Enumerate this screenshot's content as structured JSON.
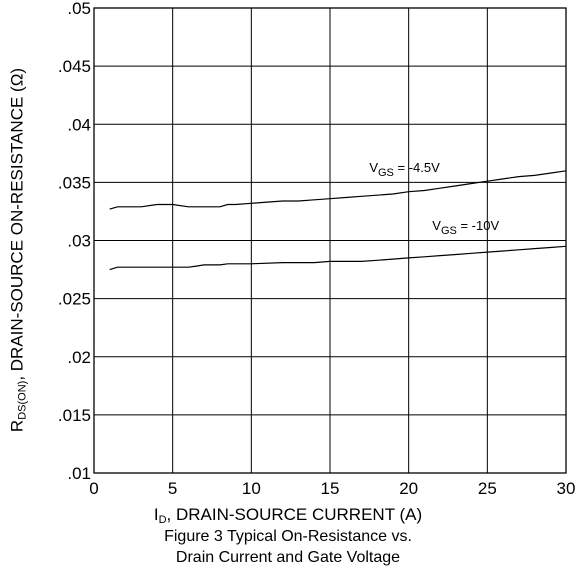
{
  "chart_data": {
    "type": "line",
    "xlabel_main": "I",
    "xlabel_sub": "D",
    "xlabel_rest": ", DRAIN-SOURCE CURRENT (A)",
    "ylabel_main": "R",
    "ylabel_sub": "DS(ON)",
    "ylabel_rest": ", DRAIN-SOURCE ON-RESISTANCE (Ω)",
    "xlim": [
      0,
      30
    ],
    "ylim": [
      0.01,
      0.05
    ],
    "x_ticks": [
      0,
      5,
      10,
      15,
      20,
      25,
      30
    ],
    "x_tick_labels": [
      "0",
      "5",
      "10",
      "15",
      "20",
      "25",
      "30"
    ],
    "y_ticks": [
      0.01,
      0.015,
      0.02,
      0.025,
      0.03,
      0.035,
      0.04,
      0.045,
      0.05
    ],
    "y_tick_labels": [
      ".01",
      ".015",
      ".02",
      ".025",
      ".03",
      ".035",
      ".04",
      ".045",
      ".05"
    ],
    "grid": true,
    "series": [
      {
        "name_main": "V",
        "name_sub": "GS",
        "name_rest": " = -4.5V",
        "x": [
          1,
          1.5,
          3,
          4,
          5,
          6,
          7,
          8,
          8.5,
          9,
          10,
          11,
          12,
          13,
          14,
          15,
          16,
          17,
          18,
          19,
          20,
          21,
          22,
          23,
          24,
          25,
          26,
          27,
          28,
          29,
          30
        ],
        "values": [
          0.0327,
          0.0329,
          0.0329,
          0.0331,
          0.0331,
          0.0329,
          0.0329,
          0.0329,
          0.0331,
          0.0331,
          0.0332,
          0.0333,
          0.0334,
          0.0334,
          0.0335,
          0.0336,
          0.0337,
          0.0338,
          0.0339,
          0.034,
          0.0342,
          0.0343,
          0.0345,
          0.0347,
          0.0349,
          0.0351,
          0.0353,
          0.0355,
          0.0356,
          0.0358,
          0.036
        ]
      },
      {
        "name_main": "V",
        "name_sub": "GS",
        "name_rest": " = -10V",
        "x": [
          1,
          1.5,
          3,
          4,
          5,
          6,
          6.5,
          7,
          8,
          8.5,
          10,
          12,
          14,
          15,
          17,
          18,
          19,
          20,
          21,
          22,
          23,
          24,
          25,
          26,
          27,
          28,
          29,
          30
        ],
        "values": [
          0.0275,
          0.0277,
          0.0277,
          0.0277,
          0.0277,
          0.0277,
          0.0278,
          0.0279,
          0.0279,
          0.028,
          0.028,
          0.0281,
          0.0281,
          0.0282,
          0.0282,
          0.0283,
          0.0284,
          0.0285,
          0.0286,
          0.0287,
          0.0288,
          0.0289,
          0.029,
          0.0291,
          0.0292,
          0.0293,
          0.0294,
          0.0295
        ]
      }
    ],
    "caption_lines": [
      "Figure 3 Typical On-Resistance vs.",
      "Drain Current and Gate Voltage"
    ]
  }
}
